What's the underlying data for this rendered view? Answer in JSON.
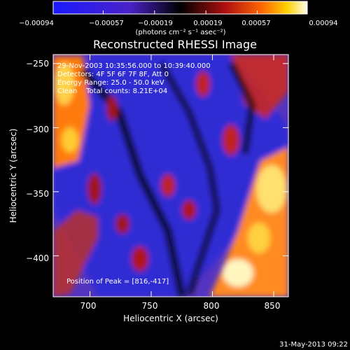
{
  "chart_data": {
    "type": "heatmap",
    "title": "Reconstructed RHESSI Image",
    "xlabel": "Heliocentric X (arcsec)",
    "ylabel": "Heliocentric Y (arcsec)",
    "xlim": [
      670,
      862
    ],
    "ylim": [
      -432,
      -243
    ],
    "x_ticks": [
      700,
      750,
      800,
      850
    ],
    "y_ticks": [
      -250,
      -300,
      -350,
      -400
    ],
    "x_tick_labels": [
      "700",
      "750",
      "800",
      "850"
    ],
    "y_tick_labels": [
      "−250",
      "−300",
      "−350",
      "−400"
    ],
    "colorbar": {
      "min": -0.00094,
      "max": 0.00094,
      "ticks": [
        -0.00094,
        -0.00057,
        -0.00019,
        0.00019,
        0.00057,
        0.00094
      ],
      "tick_labels": [
        "−0.00094",
        "−0.00057",
        "−0.00019",
        "0.00019",
        "0.00057",
        "0.00094"
      ],
      "units_label": "(photons cm⁻² s⁻¹ asec⁻²)"
    },
    "annotations": {
      "time_range": "29-Nov-2003 10:35:56.000 to 10:39:40.000",
      "detectors": "Detectors: 4F 5F 6F 7F 8F, Att 0",
      "energy_range": "Energy Range: 25.0 - 50.0 keV",
      "method_counts": "Clean    Total counts: 8.21E+04",
      "peak_position": "Position of Peak = [816,-417]"
    },
    "peak": {
      "x": 816,
      "y": -417
    }
  },
  "footer": {
    "timestamp": "31-May-2013 09:22"
  }
}
